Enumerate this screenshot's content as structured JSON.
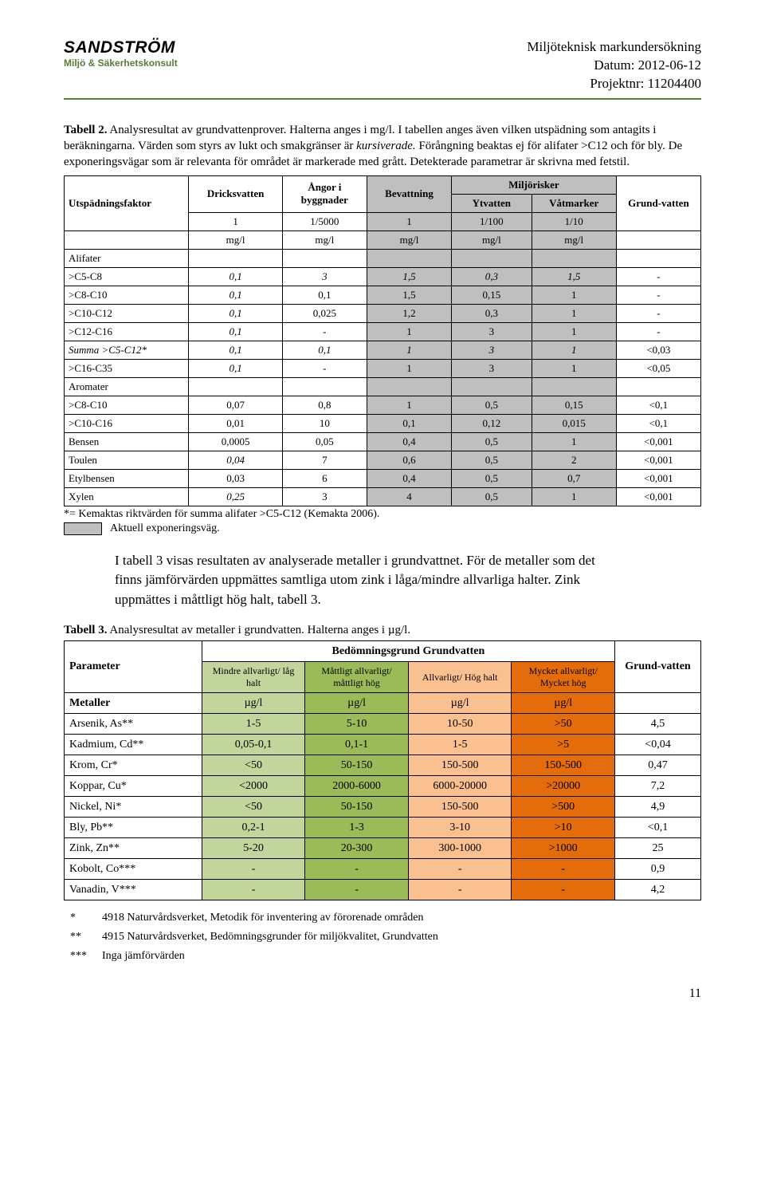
{
  "header": {
    "brand": "SANDSTRÖM",
    "brand_sub": "Miljö & Säkerhetskonsult",
    "title": "Miljöteknisk markundersökning",
    "date": "Datum: 2012-06-12",
    "project": "Projektnr: 11204400"
  },
  "tbl2_caption_head": "Tabell 2.",
  "tbl2_caption_rest": " Analysresultat av grundvattenprover. Halterna anges i mg/l. I tabellen anges även vilken utspädning som antagits i beräkningarna. Värden som styrs av lukt och smakgränser är ",
  "tbl2_caption_kursiv": "kursiverade.",
  "tbl2_caption_line2": " Förångning beaktas ej för alifater >C12 och för bly. De exponeringsvägar som är relevanta för området är markerade med grått. ",
  "tbl2_caption_detect": "Detekterade parametrar är skrivna med fetstil.",
  "tbl2": {
    "cols": {
      "c0": "Utspädningsfaktor",
      "c1": "Dricksvatten",
      "c2": "Ångor i byggnader",
      "c3": "Bevattning",
      "c4_group": "Miljörisker",
      "c4": "Ytvatten",
      "c5": "Våtmarker",
      "c6": "Grund-vatten"
    },
    "factors": {
      "c1": "1",
      "c2": "1/5000",
      "c3": "1",
      "c4": "1/100",
      "c5": "1/10"
    },
    "units": {
      "c1": "mg/l",
      "c2": "mg/l",
      "c3": "mg/l",
      "c4": "mg/l",
      "c5": "mg/l"
    },
    "sections": [
      {
        "label": "Alifater",
        "rows": [
          {
            "label": ">C5-C8",
            "v": [
              "0,1",
              "3",
              "1,5",
              "0,3",
              "1,5",
              "-"
            ],
            "italic": [
              0,
              1,
              2,
              3,
              4
            ]
          },
          {
            "label": ">C8-C10",
            "v": [
              "0,1",
              "0,1",
              "1,5",
              "0,15",
              "1",
              "-"
            ],
            "italic": [
              0
            ]
          },
          {
            "label": ">C10-C12",
            "v": [
              "0,1",
              "0,025",
              "1,2",
              "0,3",
              "1",
              "-"
            ],
            "italic": [
              0
            ]
          },
          {
            "label": ">C12-C16",
            "v": [
              "0,1",
              "-",
              "1",
              "3",
              "1",
              "-"
            ],
            "italic": [
              0
            ]
          },
          {
            "label": "Summa >C5-C12*",
            "v": [
              "0,1",
              "0,1",
              "1",
              "3",
              "1",
              "<0,03"
            ],
            "rowitalic": true
          },
          {
            "label": ">C16-C35",
            "v": [
              "0,1",
              "-",
              "1",
              "3",
              "1",
              "<0,05"
            ],
            "italic": [
              0
            ]
          }
        ]
      },
      {
        "label": "Aromater",
        "rows": [
          {
            "label": ">C8-C10",
            "v": [
              "0,07",
              "0,8",
              "1",
              "0,5",
              "0,15",
              "<0,1"
            ]
          },
          {
            "label": ">C10-C16",
            "v": [
              "0,01",
              "10",
              "0,1",
              "0,12",
              "0,015",
              "<0,1"
            ]
          },
          {
            "label": "Bensen",
            "v": [
              "0,0005",
              "0,05",
              "0,4",
              "0,5",
              "1",
              "<0,001"
            ]
          },
          {
            "label": "Toulen",
            "v": [
              "0,04",
              "7",
              "0,6",
              "0,5",
              "2",
              "<0,001"
            ],
            "italic": [
              0
            ]
          },
          {
            "label": "Etylbensen",
            "v": [
              "0,03",
              "6",
              "0,4",
              "0,5",
              "0,7",
              "<0,001"
            ]
          },
          {
            "label": "Xylen",
            "v": [
              "0,25",
              "3",
              "4",
              "0,5",
              "1",
              "<0,001"
            ],
            "italic": [
              0
            ]
          }
        ]
      }
    ],
    "footnote": "*= Kemaktas riktvärden för summa alifater >C5-C12 (Kemakta 2006).",
    "legend": "Aktuell exponeringsväg."
  },
  "body_para": "I tabell 3 visas resultaten av analyserade metaller i grundvattnet. För de metaller som det finns jämförvärden uppmättes samtliga utom zink i låga/mindre allvarliga halter. Zink uppmättes i måttligt hög halt, tabell 3.",
  "tbl3_caption_head": "Tabell 3.",
  "tbl3_caption_rest": " Analysresultat av metaller i grundvatten. Halterna anges i µg/l.",
  "tbl3": {
    "group_header": "Bedömningsgrund Grundvatten",
    "param_label": "Parameter",
    "gv_label": "Grund-vatten",
    "cats": [
      {
        "text": "Mindre allvarligt/ låg halt",
        "cls": "green1"
      },
      {
        "text": "Måttligt allvarligt/ måttligt hög",
        "cls": "green2"
      },
      {
        "text": "Allvarligt/ Hög halt",
        "cls": "yellow1"
      },
      {
        "text": "Mycket allvarligt/ Mycket hög",
        "cls": "orange1"
      }
    ],
    "unit_row_label": "Metaller",
    "unit": "µg/l",
    "rows": [
      {
        "label": "Arsenik, As**",
        "v": [
          "1-5",
          "5-10",
          "10-50",
          ">50",
          "4,5"
        ]
      },
      {
        "label": "Kadmium, Cd**",
        "v": [
          "0,05-0,1",
          "0,1-1",
          "1-5",
          ">5",
          "<0,04"
        ]
      },
      {
        "label": "Krom, Cr*",
        "v": [
          "<50",
          "50-150",
          "150-500",
          "150-500",
          "0,47"
        ]
      },
      {
        "label": "Koppar, Cu*",
        "v": [
          "<2000",
          "2000-6000",
          "6000-20000",
          ">20000",
          "7,2"
        ]
      },
      {
        "label": "Nickel, Ni*",
        "v": [
          "<50",
          "50-150",
          "150-500",
          ">500",
          "4,9"
        ]
      },
      {
        "label": "Bly, Pb**",
        "v": [
          "0,2-1",
          "1-3",
          "3-10",
          ">10",
          "<0,1"
        ]
      },
      {
        "label": "Zink, Zn**",
        "v": [
          "5-20",
          "20-300",
          "300-1000",
          ">1000",
          "25"
        ]
      },
      {
        "label": "Kobolt, Co***",
        "v": [
          "-",
          "-",
          "-",
          "-",
          "0,9"
        ]
      },
      {
        "label": "Vanadin, V***",
        "v": [
          "-",
          "-",
          "-",
          "-",
          "4,2"
        ]
      }
    ],
    "footnotes": [
      {
        "mark": "*",
        "text": "4918 Naturvårdsverket, Metodik för inventering av förorenade områden"
      },
      {
        "mark": "**",
        "text": "4915 Naturvårdsverket, Bedömningsgrunder för miljökvalitet, Grundvatten"
      },
      {
        "mark": "***",
        "text": "Inga jämförvärden"
      }
    ]
  },
  "page_number": "11"
}
